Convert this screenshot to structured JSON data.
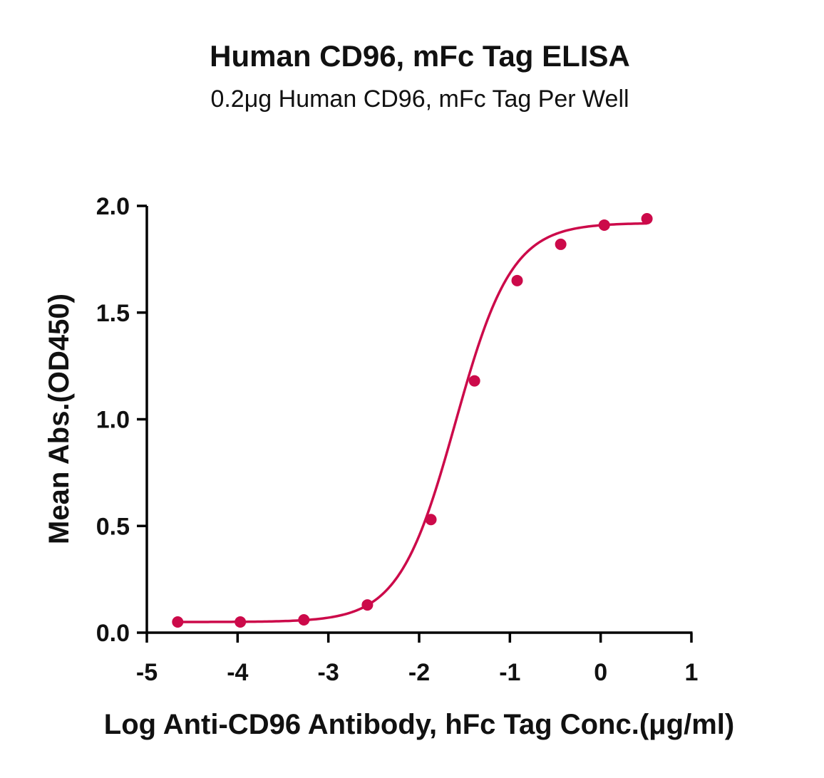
{
  "chart_data": {
    "type": "scatter",
    "title": "Human CD96, mFc Tag ELISA",
    "subtitle": "0.2μg Human CD96, mFc Tag Per Well",
    "xlabel": "Log Anti-CD96 Antibody, hFc Tag Conc.(μg/ml)",
    "ylabel": "Mean Abs.(OD450)",
    "xlim": [
      -5,
      1
    ],
    "ylim": [
      0.0,
      2.0
    ],
    "xticks": [
      -5,
      -4,
      -3,
      -2,
      -1,
      0,
      1
    ],
    "xtick_labels": [
      "-5",
      "-4",
      "-3",
      "-2",
      "-1",
      "0",
      "1"
    ],
    "yticks": [
      0.0,
      0.5,
      1.0,
      1.5,
      2.0
    ],
    "ytick_labels": [
      "0.0",
      "0.5",
      "1.0",
      "1.5",
      "2.0"
    ],
    "grid": false,
    "legend": "none",
    "color": "#cc0a4a",
    "series": [
      {
        "points": [
          {
            "x": -4.66,
            "y": 0.05
          },
          {
            "x": -3.97,
            "y": 0.05
          },
          {
            "x": -3.27,
            "y": 0.06
          },
          {
            "x": -2.57,
            "y": 0.13
          },
          {
            "x": -1.87,
            "y": 0.53
          },
          {
            "x": -1.39,
            "y": 1.18
          },
          {
            "x": -0.92,
            "y": 1.65
          },
          {
            "x": -0.44,
            "y": 1.82
          },
          {
            "x": 0.04,
            "y": 1.91
          },
          {
            "x": 0.51,
            "y": 1.94
          }
        ],
        "fit": {
          "model": "4PL",
          "bottom": 0.05,
          "top": 1.92,
          "logEC50": -1.6,
          "hillslope": 1.4
        }
      }
    ]
  }
}
